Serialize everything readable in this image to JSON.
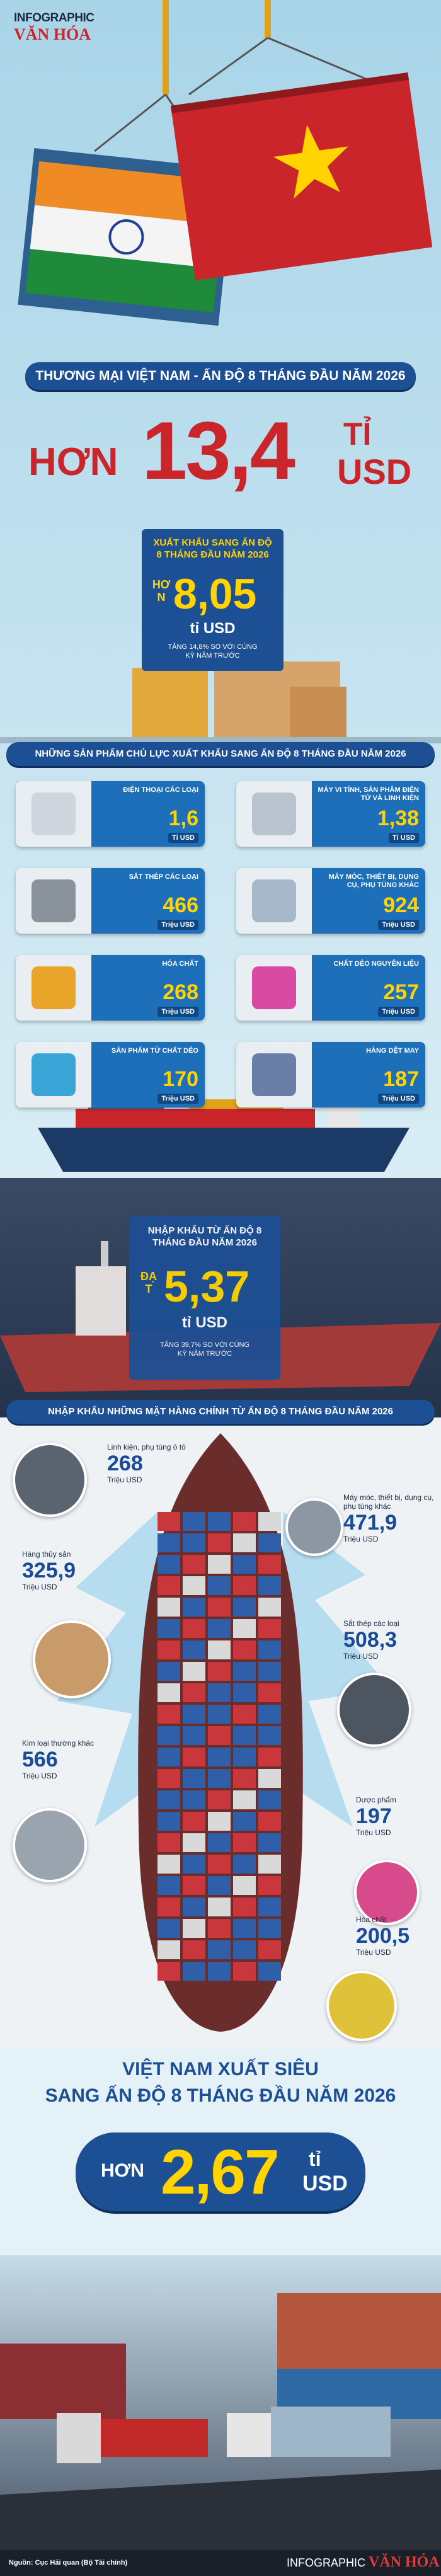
{
  "header": {
    "brand_top": "INFOGRAPHIC",
    "brand_bottom": "VĂN HÓA"
  },
  "title": "THƯƠNG MẠI VIỆT NAM - ẤN ĐỘ 8 THÁNG ĐẦU NĂM 2026",
  "total": {
    "prefix": "HƠN",
    "value": "13,4",
    "unit_top": "TỈ",
    "unit_bottom": "USD"
  },
  "export_summary": {
    "label": "XUẤT KHẨU SANG ẤN ĐỘ 8 THÁNG ĐẦU NĂM 2026",
    "prefix": "HƠN",
    "value": "8,05",
    "unit": "tỉ USD",
    "note": "TĂNG 14,8% SO VỚI CÙNG KỲ NĂM TRƯỚC"
  },
  "export_products": {
    "heading": "NHỮNG SẢN PHẨM CHỦ LỰC XUẤT KHẨU SANG ẤN ĐỘ 8 THÁNG ĐẦU NĂM 2026",
    "items": [
      {
        "name": "ĐIỆN THOẠI CÁC LOẠI",
        "value": "1,6",
        "unit": "Tỉ USD"
      },
      {
        "name": "MÁY VI TÍNH, SẢN PHẨM ĐIỆN TỬ VÀ LINH KIỆN",
        "value": "1,38",
        "unit": "Tỉ USD"
      },
      {
        "name": "SẮT THÉP CÁC LOẠI",
        "value": "466",
        "unit": "Triệu USD"
      },
      {
        "name": "MÁY MÓC, THIẾT BỊ, DỤNG CỤ, PHỤ TÙNG KHÁC",
        "value": "924",
        "unit": "Triệu USD"
      },
      {
        "name": "HÓA CHẤT",
        "value": "268",
        "unit": "Triệu USD"
      },
      {
        "name": "CHẤT DẺO NGUYÊN LIỆU",
        "value": "257",
        "unit": "Triệu USD"
      },
      {
        "name": "SẢN PHẨM TỪ CHẤT DẺO",
        "value": "170",
        "unit": "Triệu USD"
      },
      {
        "name": "HÀNG DỆT MAY",
        "value": "187",
        "unit": "Triệu USD"
      }
    ]
  },
  "import_summary": {
    "label": "NHẬP KHẨU TỪ ẤN ĐỘ 8 THÁNG ĐẦU NĂM 2026",
    "prefix": "ĐẠT",
    "value": "5,37",
    "unit": "tỉ USD",
    "note": "TĂNG 39,7% SO VỚI CÙNG KỲ NĂM TRƯỚC"
  },
  "import_products": {
    "heading": "NHẬP KHẨU NHỮNG MẶT HÀNG CHÍNH TỪ ẤN ĐỘ 8 THÁNG ĐẦU NĂM 2026",
    "items": [
      {
        "name": "Linh kiện, phụ tùng ô tô",
        "value": "268",
        "unit": "Triệu USD"
      },
      {
        "name": "Máy móc, thiết bị, dụng cụ, phụ tùng khác",
        "value": "471,9",
        "unit": "Triệu USD"
      },
      {
        "name": "Hàng thủy sản",
        "value": "325,9",
        "unit": "Triệu USD"
      },
      {
        "name": "Sắt thép các loại",
        "value": "508,3",
        "unit": "Triệu USD"
      },
      {
        "name": "Kim loại thường khác",
        "value": "566",
        "unit": "Triệu USD"
      },
      {
        "name": "Dược phẩm",
        "value": "197",
        "unit": "Triệu USD"
      },
      {
        "name": "Hóa chất",
        "value": "200,5",
        "unit": "Triệu USD"
      }
    ]
  },
  "surplus": {
    "line1": "VIỆT NAM XUẤT SIÊU",
    "line2": "SANG ẤN ĐỘ 8 THÁNG ĐẦU NĂM 2026",
    "prefix": "HƠN",
    "value": "2,67",
    "unit_top": "tỉ",
    "unit_bottom": "USD"
  },
  "footer": {
    "source": "Nguồn: Cục Hải quan (Bộ Tài chính)",
    "brand_top": "INFOGRAPHIC",
    "brand_bottom": "VĂN HÓA"
  }
}
